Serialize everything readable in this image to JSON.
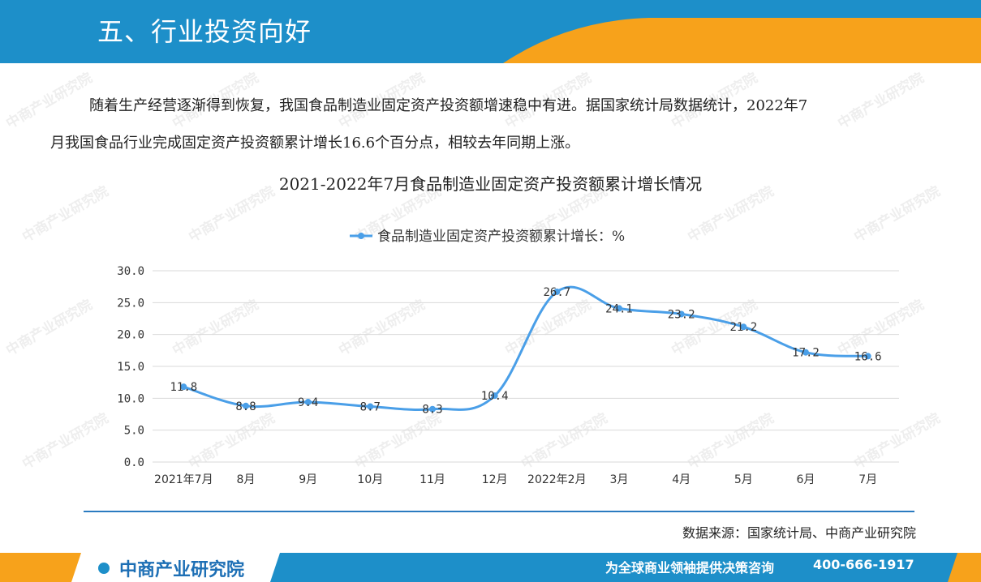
{
  "header": {
    "title": "五、行业投资向好"
  },
  "paragraph": {
    "line1": "随着生产经营逐渐得到恢复，我国食品制造业固定资产投资额增速稳中有进。据国家统计局数据统计，2022年7",
    "line2": "月我国食品行业完成固定资产投资额累计增长16.6个百分点，相较去年同期上涨。"
  },
  "chart_data": {
    "type": "line",
    "title": "2021-2022年7月食品制造业固定资产投资额累计增长情况",
    "categories": [
      "2021年7月",
      "8月",
      "9月",
      "10月",
      "11月",
      "12月",
      "2022年2月",
      "3月",
      "4月",
      "5月",
      "6月",
      "7月"
    ],
    "series": [
      {
        "name": "食品制造业固定资产投资额累计增长：%",
        "values": [
          11.8,
          8.8,
          9.4,
          8.7,
          8.3,
          10.4,
          26.7,
          24.1,
          23.2,
          21.2,
          17.2,
          16.6
        ],
        "color": "#4a9fe8"
      }
    ],
    "ylim": [
      0,
      30
    ],
    "yticks": [
      "0.0",
      "5.0",
      "10.0",
      "15.0",
      "20.0",
      "25.0",
      "30.0"
    ],
    "grid": true,
    "legend": "top-center",
    "smooth": true
  },
  "source": "数据来源：国家统计局、中商产业研究院",
  "footer": {
    "brand": "中商产业研究院",
    "slogan": "为全球商业领袖提供决策咨询",
    "phone": "400-666-1917"
  },
  "watermark": "中商产业研究院",
  "colors": {
    "blue": "#1d8fc9",
    "orange": "#f7a21b",
    "line": "#4a9fe8"
  }
}
